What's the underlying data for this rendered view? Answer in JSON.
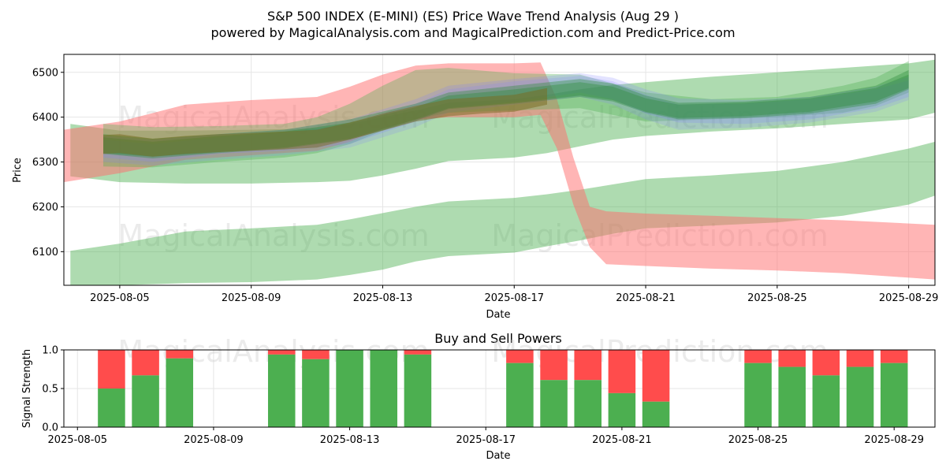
{
  "chart_data": [
    {
      "type": "area",
      "title_line1": "S&P 500 INDEX (E-MINI) (ES) Price Wave Trend Analysis (Aug 29 )",
      "title_line2": "powered by MagicalAnalysis.com and MagicalPrediction.com and Predict-Price.com",
      "xlabel": "Date",
      "ylabel": "Price",
      "ylim": [
        6025,
        6540
      ],
      "xlim_day": [
        3.3,
        29.8
      ],
      "x_ticks": [
        {
          "day": 5,
          "label": "2025-08-05"
        },
        {
          "day": 9,
          "label": "2025-08-09"
        },
        {
          "day": 13,
          "label": "2025-08-13"
        },
        {
          "day": 17,
          "label": "2025-08-17"
        },
        {
          "day": 21,
          "label": "2025-08-21"
        },
        {
          "day": 25,
          "label": "2025-08-25"
        },
        {
          "day": 29,
          "label": "2025-08-29"
        }
      ],
      "y_ticks": [
        6100,
        6200,
        6300,
        6400,
        6500
      ],
      "watermark_left": "MagicalAnalysis.com",
      "watermark_right": "MagicalPrediction.com",
      "bands": [
        {
          "name": "green-wide-low",
          "color": "#4caf50",
          "opacity": 0.45,
          "x": [
            3.5,
            5,
            7,
            9,
            11,
            12,
            13,
            14,
            15,
            17,
            18,
            19,
            20,
            21,
            23,
            25,
            27,
            29,
            29.8
          ],
          "upper": [
            6102,
            6118,
            6145,
            6152,
            6160,
            6172,
            6186,
            6200,
            6212,
            6220,
            6228,
            6238,
            6250,
            6262,
            6270,
            6280,
            6300,
            6330,
            6345
          ],
          "lower": [
            6025,
            6025,
            6030,
            6032,
            6038,
            6048,
            6060,
            6078,
            6090,
            6098,
            6112,
            6125,
            6140,
            6152,
            6158,
            6165,
            6180,
            6205,
            6225
          ]
        },
        {
          "name": "green-wide-mid",
          "color": "#4caf50",
          "opacity": 0.45,
          "x": [
            3.5,
            5,
            7,
            9,
            11,
            12,
            13,
            14,
            15,
            17,
            18,
            19,
            20,
            21,
            23,
            25,
            27,
            29,
            29.8
          ],
          "upper": [
            6385,
            6370,
            6370,
            6372,
            6375,
            6385,
            6400,
            6415,
            6432,
            6440,
            6450,
            6462,
            6472,
            6478,
            6490,
            6500,
            6510,
            6520,
            6528
          ],
          "lower": [
            6268,
            6255,
            6252,
            6252,
            6255,
            6258,
            6270,
            6285,
            6302,
            6310,
            6320,
            6335,
            6350,
            6358,
            6368,
            6375,
            6385,
            6395,
            6410
          ]
        },
        {
          "name": "red-forecast",
          "color": "#ff6b6b",
          "opacity": 0.5,
          "x": [
            3.3,
            5,
            7,
            9,
            11,
            12,
            13,
            14,
            15,
            17,
            17.8,
            18.3,
            18.8,
            19.3,
            19.8,
            21,
            23,
            25,
            27,
            29.8
          ],
          "upper": [
            6372,
            6390,
            6428,
            6438,
            6445,
            6468,
            6495,
            6515,
            6520,
            6520,
            6522,
            6440,
            6310,
            6200,
            6190,
            6185,
            6180,
            6175,
            6170,
            6160
          ],
          "lower": [
            6255,
            6275,
            6305,
            6315,
            6325,
            6345,
            6375,
            6395,
            6400,
            6400,
            6405,
            6330,
            6205,
            6110,
            6072,
            6068,
            6062,
            6058,
            6052,
            6038
          ]
        },
        {
          "name": "green-upper",
          "color": "#4caf50",
          "opacity": 0.35,
          "x": [
            4.5,
            6,
            8,
            10,
            11,
            12,
            13,
            14,
            15,
            17,
            19,
            21,
            23,
            25,
            27,
            28,
            29
          ],
          "upper": [
            6385,
            6378,
            6380,
            6385,
            6400,
            6430,
            6470,
            6505,
            6510,
            6498,
            6495,
            6455,
            6440,
            6445,
            6470,
            6488,
            6525
          ],
          "lower": [
            6290,
            6288,
            6300,
            6310,
            6320,
            6340,
            6370,
            6395,
            6410,
            6415,
            6420,
            6390,
            6395,
            6400,
            6410,
            6425,
            6455
          ]
        },
        {
          "name": "blue-1",
          "color": "#8080ff",
          "opacity": 0.22,
          "x": [
            4.5,
            6,
            8,
            10,
            12,
            14,
            15,
            17,
            19,
            20,
            21,
            22,
            24,
            26,
            28,
            29
          ],
          "upper": [
            6358,
            6350,
            6362,
            6372,
            6395,
            6440,
            6470,
            6485,
            6498,
            6488,
            6462,
            6442,
            6438,
            6445,
            6468,
            6490
          ],
          "lower": [
            6310,
            6300,
            6318,
            6325,
            6340,
            6390,
            6420,
            6435,
            6455,
            6440,
            6408,
            6388,
            6385,
            6395,
            6420,
            6445
          ]
        },
        {
          "name": "blue-2",
          "color": "#8080ff",
          "opacity": 0.2,
          "x": [
            4.5,
            6,
            8,
            10,
            12,
            14,
            15,
            17,
            19,
            20,
            21,
            22,
            24,
            26,
            28,
            29
          ],
          "upper": [
            6350,
            6340,
            6355,
            6365,
            6385,
            6430,
            6462,
            6480,
            6492,
            6480,
            6450,
            6428,
            6430,
            6440,
            6462,
            6482
          ],
          "lower": [
            6300,
            6292,
            6305,
            6315,
            6332,
            6378,
            6410,
            6428,
            6445,
            6428,
            6395,
            6372,
            6376,
            6388,
            6412,
            6438
          ]
        },
        {
          "name": "green-core-1",
          "color": "#2e8b3a",
          "opacity": 0.38,
          "x": [
            4.5,
            6,
            8,
            10,
            12,
            14,
            15,
            17,
            19,
            20,
            21,
            22,
            24,
            26,
            28,
            29
          ],
          "upper": [
            6362,
            6352,
            6362,
            6372,
            6395,
            6430,
            6455,
            6470,
            6485,
            6475,
            6448,
            6432,
            6435,
            6445,
            6470,
            6505
          ],
          "lower": [
            6318,
            6308,
            6320,
            6330,
            6350,
            6392,
            6418,
            6430,
            6445,
            6435,
            6410,
            6395,
            6398,
            6408,
            6430,
            6462
          ]
        },
        {
          "name": "green-core-2",
          "color": "#2e8b3a",
          "opacity": 0.38,
          "x": [
            4.5,
            6,
            8,
            10,
            12,
            14,
            15,
            17,
            19,
            20,
            21,
            22,
            24,
            26,
            28,
            29
          ],
          "upper": [
            6355,
            6345,
            6358,
            6368,
            6388,
            6422,
            6448,
            6462,
            6478,
            6468,
            6442,
            6428,
            6432,
            6442,
            6465,
            6495
          ],
          "lower": [
            6320,
            6312,
            6322,
            6332,
            6352,
            6395,
            6420,
            6432,
            6448,
            6438,
            6412,
            6398,
            6402,
            6412,
            6435,
            6465
          ]
        },
        {
          "name": "brown-core",
          "color": "#7a6a1e",
          "opacity": 0.5,
          "x": [
            4.5,
            5,
            6,
            7,
            8,
            9,
            10,
            11,
            12,
            13,
            14,
            15,
            16,
            17,
            18
          ],
          "upper": [
            6360,
            6362,
            6352,
            6358,
            6362,
            6365,
            6368,
            6372,
            6388,
            6408,
            6425,
            6440,
            6445,
            6450,
            6465
          ],
          "lower": [
            6318,
            6320,
            6312,
            6318,
            6322,
            6325,
            6328,
            6332,
            6350,
            6370,
            6390,
            6402,
            6408,
            6412,
            6428
          ]
        }
      ]
    },
    {
      "type": "bar",
      "title": "Buy and Sell Powers",
      "xlabel": "Date",
      "ylabel": "Signal Strength",
      "ylim": [
        0,
        1.0
      ],
      "y_ticks": [
        "0.0",
        "0.5",
        "1.0"
      ],
      "xlim_day": [
        4.6,
        30.2
      ],
      "x_ticks": [
        {
          "day": 5,
          "label": "2025-08-05"
        },
        {
          "day": 9,
          "label": "2025-08-09"
        },
        {
          "day": 13,
          "label": "2025-08-13"
        },
        {
          "day": 17,
          "label": "2025-08-17"
        },
        {
          "day": 21,
          "label": "2025-08-21"
        },
        {
          "day": 25,
          "label": "2025-08-25"
        },
        {
          "day": 29,
          "label": "2025-08-29"
        }
      ],
      "buy_color": "#4caf50",
      "sell_color": "#ff4c4c",
      "watermark_left": "MagicalAnalysis.com",
      "watermark_right": "MagicalPrediction.com",
      "bars": [
        {
          "day": 6,
          "buy": 0.5
        },
        {
          "day": 7,
          "buy": 0.67
        },
        {
          "day": 8,
          "buy": 0.89
        },
        {
          "day": 11,
          "buy": 0.94
        },
        {
          "day": 12,
          "buy": 0.88
        },
        {
          "day": 13,
          "buy": 1.0
        },
        {
          "day": 14,
          "buy": 1.0
        },
        {
          "day": 15,
          "buy": 0.94
        },
        {
          "day": 18,
          "buy": 0.83
        },
        {
          "day": 19,
          "buy": 0.61
        },
        {
          "day": 20,
          "buy": 0.61
        },
        {
          "day": 21,
          "buy": 0.44
        },
        {
          "day": 22,
          "buy": 0.33
        },
        {
          "day": 25,
          "buy": 0.83
        },
        {
          "day": 26,
          "buy": 0.78
        },
        {
          "day": 27,
          "buy": 0.67
        },
        {
          "day": 28,
          "buy": 0.78
        },
        {
          "day": 29,
          "buy": 0.83
        }
      ]
    }
  ]
}
